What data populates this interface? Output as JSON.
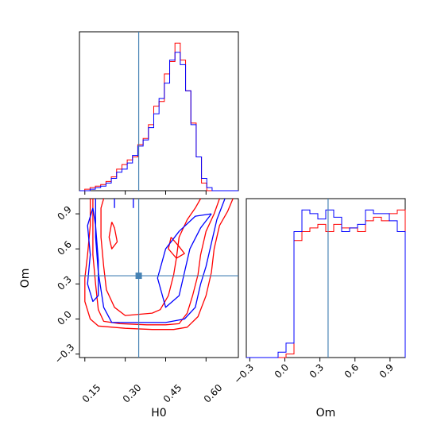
{
  "chart_data": {
    "type": "corner",
    "parameters": [
      "H0",
      "Om"
    ],
    "truth": {
      "H0": 0.35,
      "Om": 0.37
    },
    "truth_color": "#4682b4",
    "series_colors": {
      "red": "#ff0000",
      "blue": "#0000ff"
    },
    "xlabel_h0": "H0",
    "xlabel_om": "Om",
    "ylabel_om": "Om",
    "ranges": {
      "H0": [
        0.13,
        0.72
      ],
      "Om": [
        -0.33,
        1.03
      ]
    },
    "ticks": {
      "H0": [
        "0.15",
        "0.30",
        "0.45",
        "0.60"
      ],
      "Om": [
        "−0.3",
        "0.0",
        "0.3",
        "0.6",
        "0.9"
      ]
    },
    "h0_hist": {
      "bin_start": 0.13,
      "bin_width": 0.0197,
      "red": [
        0,
        1,
        2,
        3,
        4,
        6,
        9,
        14,
        17,
        20,
        22,
        30,
        34,
        43,
        55,
        58,
        76,
        84,
        96,
        85,
        65,
        44,
        22,
        5,
        0,
        0,
        0,
        0,
        0,
        0
      ],
      "blue": [
        0,
        0,
        1,
        2,
        3,
        5,
        8,
        12,
        14,
        18,
        23,
        29,
        33,
        41,
        50,
        60,
        70,
        85,
        90,
        82,
        65,
        43,
        22,
        8,
        2,
        0,
        0,
        0,
        0,
        0
      ]
    },
    "om_hist": {
      "bin_start": -0.33,
      "bin_width": 0.068,
      "red": [
        0,
        0,
        0,
        0,
        0,
        2,
        65,
        70,
        72,
        74,
        70,
        74,
        72,
        72,
        70,
        76,
        78,
        76,
        80,
        82,
        74,
        0
      ],
      "blue": [
        0,
        0,
        0,
        0,
        3,
        8,
        70,
        82,
        80,
        77,
        82,
        78,
        70,
        72,
        74,
        82,
        80,
        80,
        76,
        70,
        40,
        0
      ]
    },
    "contours": {
      "red": [
        [
          [
            0.58,
            1.03
          ],
          [
            0.56,
            0.95
          ],
          [
            0.53,
            0.85
          ],
          [
            0.5,
            0.7
          ],
          [
            0.49,
            0.52
          ],
          [
            0.48,
            0.38
          ],
          [
            0.46,
            0.2
          ],
          [
            0.43,
            0.08
          ],
          [
            0.4,
            0.05
          ],
          [
            0.3,
            0.03
          ],
          [
            0.26,
            0.1
          ],
          [
            0.23,
            0.25
          ],
          [
            0.22,
            0.45
          ],
          [
            0.21,
            0.7
          ],
          [
            0.21,
            0.95
          ],
          [
            0.22,
            1.03
          ]
        ],
        [
          [
            0.65,
            1.03
          ],
          [
            0.63,
            0.9
          ],
          [
            0.6,
            0.75
          ],
          [
            0.58,
            0.55
          ],
          [
            0.57,
            0.38
          ],
          [
            0.55,
            0.2
          ],
          [
            0.53,
            0.05
          ],
          [
            0.5,
            -0.04
          ],
          [
            0.45,
            -0.05
          ],
          [
            0.38,
            -0.05
          ],
          [
            0.28,
            -0.04
          ],
          [
            0.22,
            -0.02
          ],
          [
            0.2,
            0.08
          ],
          [
            0.19,
            0.3
          ],
          [
            0.18,
            0.55
          ],
          [
            0.18,
            0.8
          ],
          [
            0.18,
            1.03
          ]
        ],
        [
          [
            0.7,
            1.03
          ],
          [
            0.68,
            0.92
          ],
          [
            0.65,
            0.8
          ],
          [
            0.63,
            0.6
          ],
          [
            0.62,
            0.4
          ],
          [
            0.6,
            0.2
          ],
          [
            0.57,
            0.02
          ],
          [
            0.53,
            -0.07
          ],
          [
            0.48,
            -0.09
          ],
          [
            0.4,
            -0.09
          ],
          [
            0.3,
            -0.08
          ],
          [
            0.2,
            -0.06
          ],
          [
            0.17,
            0.0
          ],
          [
            0.15,
            0.15
          ],
          [
            0.15,
            0.35
          ],
          [
            0.16,
            0.55
          ],
          [
            0.17,
            0.8
          ],
          [
            0.17,
            1.03
          ]
        ],
        [
          [
            0.25,
            0.83
          ],
          [
            0.24,
            0.7
          ],
          [
            0.25,
            0.6
          ],
          [
            0.27,
            0.66
          ],
          [
            0.26,
            0.78
          ],
          [
            0.25,
            0.83
          ]
        ],
        [
          [
            0.47,
            0.7
          ],
          [
            0.5,
            0.62
          ],
          [
            0.52,
            0.56
          ],
          [
            0.49,
            0.52
          ],
          [
            0.46,
            0.6
          ],
          [
            0.47,
            0.7
          ]
        ]
      ],
      "blue": [
        [
          [
            0.67,
            1.03
          ],
          [
            0.64,
            0.85
          ],
          [
            0.62,
            0.65
          ],
          [
            0.6,
            0.45
          ],
          [
            0.58,
            0.3
          ],
          [
            0.56,
            0.1
          ],
          [
            0.52,
            0.0
          ],
          [
            0.45,
            -0.03
          ],
          [
            0.35,
            -0.03
          ],
          [
            0.25,
            -0.03
          ],
          [
            0.22,
            0.1
          ],
          [
            0.2,
            0.4
          ],
          [
            0.19,
            0.7
          ],
          [
            0.19,
            1.03
          ]
        ],
        [
          [
            0.62,
            0.9
          ],
          [
            0.58,
            0.78
          ],
          [
            0.54,
            0.6
          ],
          [
            0.52,
            0.4
          ],
          [
            0.5,
            0.2
          ],
          [
            0.45,
            0.1
          ],
          [
            0.42,
            0.35
          ],
          [
            0.45,
            0.6
          ],
          [
            0.5,
            0.75
          ],
          [
            0.56,
            0.88
          ],
          [
            0.62,
            0.9
          ]
        ],
        [
          [
            0.18,
            0.95
          ],
          [
            0.16,
            0.8
          ],
          [
            0.17,
            0.55
          ],
          [
            0.16,
            0.3
          ],
          [
            0.18,
            0.15
          ],
          [
            0.2,
            0.2
          ],
          [
            0.2,
            0.5
          ],
          [
            0.19,
            0.8
          ],
          [
            0.18,
            0.95
          ]
        ],
        [
          [
            0.26,
            1.03
          ],
          [
            0.26,
            0.95
          ]
        ],
        [
          [
            0.33,
            1.03
          ],
          [
            0.33,
            0.95
          ]
        ]
      ]
    }
  }
}
